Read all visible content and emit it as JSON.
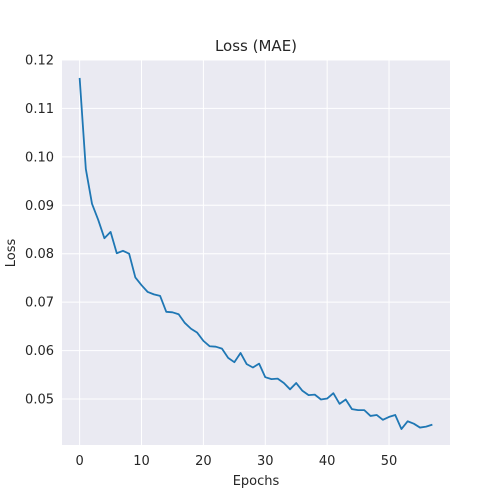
{
  "chart_data": {
    "type": "line",
    "title": "Loss (MAE)",
    "xlabel": "Epochs",
    "ylabel": "Loss",
    "xlim": [
      -2.85,
      59.85
    ],
    "ylim": [
      0.0405,
      0.12
    ],
    "x_ticks": [
      0,
      10,
      20,
      30,
      40,
      50
    ],
    "y_ticks": [
      0.05,
      0.06,
      0.07,
      0.08,
      0.09,
      0.1,
      0.11,
      0.12
    ],
    "x_tick_labels": [
      "0",
      "10",
      "20",
      "30",
      "40",
      "50"
    ],
    "y_tick_labels": [
      "0.05",
      "0.06",
      "0.07",
      "0.08",
      "0.09",
      "0.10",
      "0.11",
      "0.12"
    ],
    "grid": true,
    "legend": "none",
    "style": {
      "background": "#eaeaf2",
      "grid_color": "#ffffff",
      "line_color": "#1f77b4"
    },
    "series": [
      {
        "x": [
          0,
          1,
          2,
          3,
          4,
          5,
          6,
          7,
          8,
          9,
          10,
          11,
          12,
          13,
          14,
          15,
          16,
          17,
          18,
          19,
          20,
          21,
          22,
          23,
          24,
          25,
          26,
          27,
          28,
          29,
          30,
          31,
          32,
          33,
          34,
          35,
          36,
          37,
          38,
          39,
          40,
          41,
          42,
          43,
          44,
          45,
          46,
          47,
          48,
          49,
          50,
          51,
          52,
          53,
          54,
          55,
          56,
          57
        ],
        "values": [
          0.1163,
          0.0975,
          0.0903,
          0.087,
          0.0832,
          0.0845,
          0.0801,
          0.0806,
          0.08,
          0.0751,
          0.0735,
          0.0721,
          0.0716,
          0.0713,
          0.068,
          0.0679,
          0.0675,
          0.0657,
          0.0645,
          0.0637,
          0.062,
          0.0609,
          0.0608,
          0.0604,
          0.0585,
          0.0576,
          0.0595,
          0.0572,
          0.0565,
          0.0573,
          0.0545,
          0.0541,
          0.0542,
          0.0533,
          0.052,
          0.0533,
          0.0517,
          0.0508,
          0.0509,
          0.0499,
          0.0501,
          0.0512,
          0.049,
          0.0499,
          0.0479,
          0.0477,
          0.0477,
          0.0465,
          0.0467,
          0.0457,
          0.0463,
          0.0467,
          0.0438,
          0.0454,
          0.0449,
          0.0441,
          0.0443,
          0.0447
        ]
      }
    ]
  }
}
